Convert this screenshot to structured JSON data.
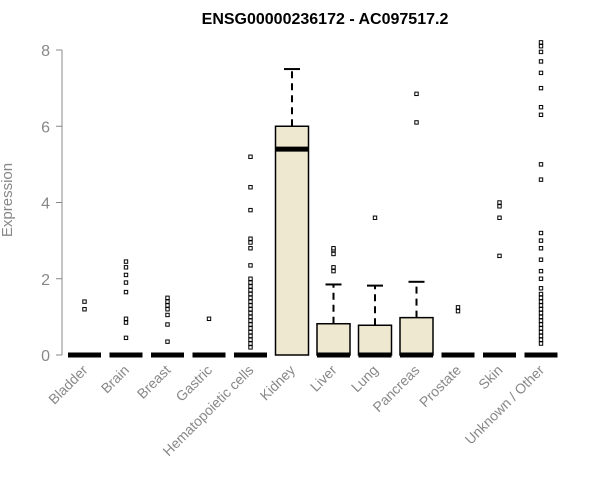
{
  "chart_data": {
    "type": "box",
    "title": "ENSG00000236172 - AC097517.2",
    "xlabel": "",
    "ylabel": "Expression",
    "ylim": [
      0,
      8
    ],
    "yticks": [
      0,
      2,
      4,
      6,
      8
    ],
    "grid": false,
    "legend": "none",
    "box_fill": "#EEE8D0",
    "categories": [
      "Bladder",
      "Brain",
      "Breast",
      "Gastric",
      "Hematopoietic cells",
      "Kidney",
      "Liver",
      "Lung",
      "Pancreas",
      "Prostate",
      "Skin",
      "Unknown / Other"
    ],
    "boxes": [
      {
        "q1": 0,
        "median": 0,
        "q3": 0,
        "whisker_low": 0,
        "whisker_high": 0,
        "outliers": [
          1.2,
          1.4
        ]
      },
      {
        "q1": 0,
        "median": 0,
        "q3": 0,
        "whisker_low": 0,
        "whisker_high": 0,
        "outliers": [
          0.45,
          0.85,
          0.95,
          1.65,
          1.9,
          2.1,
          2.3,
          2.45
        ]
      },
      {
        "q1": 0,
        "median": 0,
        "q3": 0,
        "whisker_low": 0,
        "whisker_high": 0,
        "outliers": [
          0.35,
          0.8,
          1.05,
          1.2,
          1.3,
          1.4,
          1.5
        ]
      },
      {
        "q1": 0,
        "median": 0,
        "q3": 0,
        "whisker_low": 0,
        "whisker_high": 0,
        "outliers": [
          0.95
        ]
      },
      {
        "q1": 0,
        "median": 0,
        "q3": 0,
        "whisker_low": 0,
        "whisker_high": 0,
        "outliers": [
          0.2,
          0.3,
          0.4,
          0.5,
          0.6,
          0.7,
          0.8,
          0.9,
          1.0,
          1.1,
          1.2,
          1.3,
          1.4,
          1.5,
          1.6,
          1.7,
          1.8,
          1.9,
          2.0,
          2.35,
          2.8,
          2.95,
          3.05,
          3.8,
          4.4,
          5.2
        ]
      },
      {
        "q1": 0,
        "median": 5.4,
        "q3": 6.0,
        "whisker_low": 0,
        "whisker_high": 7.5,
        "outliers": []
      },
      {
        "q1": 0,
        "median": 0,
        "q3": 0.82,
        "whisker_low": 0,
        "whisker_high": 1.85,
        "outliers": [
          2.2,
          2.3,
          2.65,
          2.75,
          2.8
        ]
      },
      {
        "q1": 0,
        "median": 0,
        "q3": 0.78,
        "whisker_low": 0,
        "whisker_high": 1.82,
        "outliers": [
          3.6
        ]
      },
      {
        "q1": 0,
        "median": 0,
        "q3": 0.98,
        "whisker_low": 0,
        "whisker_high": 1.92,
        "outliers": [
          6.1,
          6.85
        ]
      },
      {
        "q1": 0,
        "median": 0,
        "q3": 0,
        "whisker_low": 0,
        "whisker_high": 0,
        "outliers": [
          1.15,
          1.25
        ]
      },
      {
        "q1": 0,
        "median": 0,
        "q3": 0,
        "whisker_low": 0,
        "whisker_high": 0,
        "outliers": [
          2.6,
          3.6,
          3.9,
          4.0
        ]
      },
      {
        "q1": 0,
        "median": 0,
        "q3": 0,
        "whisker_low": 0,
        "whisker_high": 0,
        "outliers": [
          0.3,
          0.4,
          0.5,
          0.6,
          0.7,
          0.8,
          0.9,
          1.0,
          1.1,
          1.2,
          1.3,
          1.4,
          1.5,
          1.6,
          1.75,
          2.0,
          2.2,
          2.5,
          2.8,
          3.0,
          3.2,
          4.6,
          5.0,
          6.3,
          6.5,
          7.0,
          7.4,
          7.7,
          7.95,
          8.1,
          8.2
        ]
      }
    ]
  }
}
